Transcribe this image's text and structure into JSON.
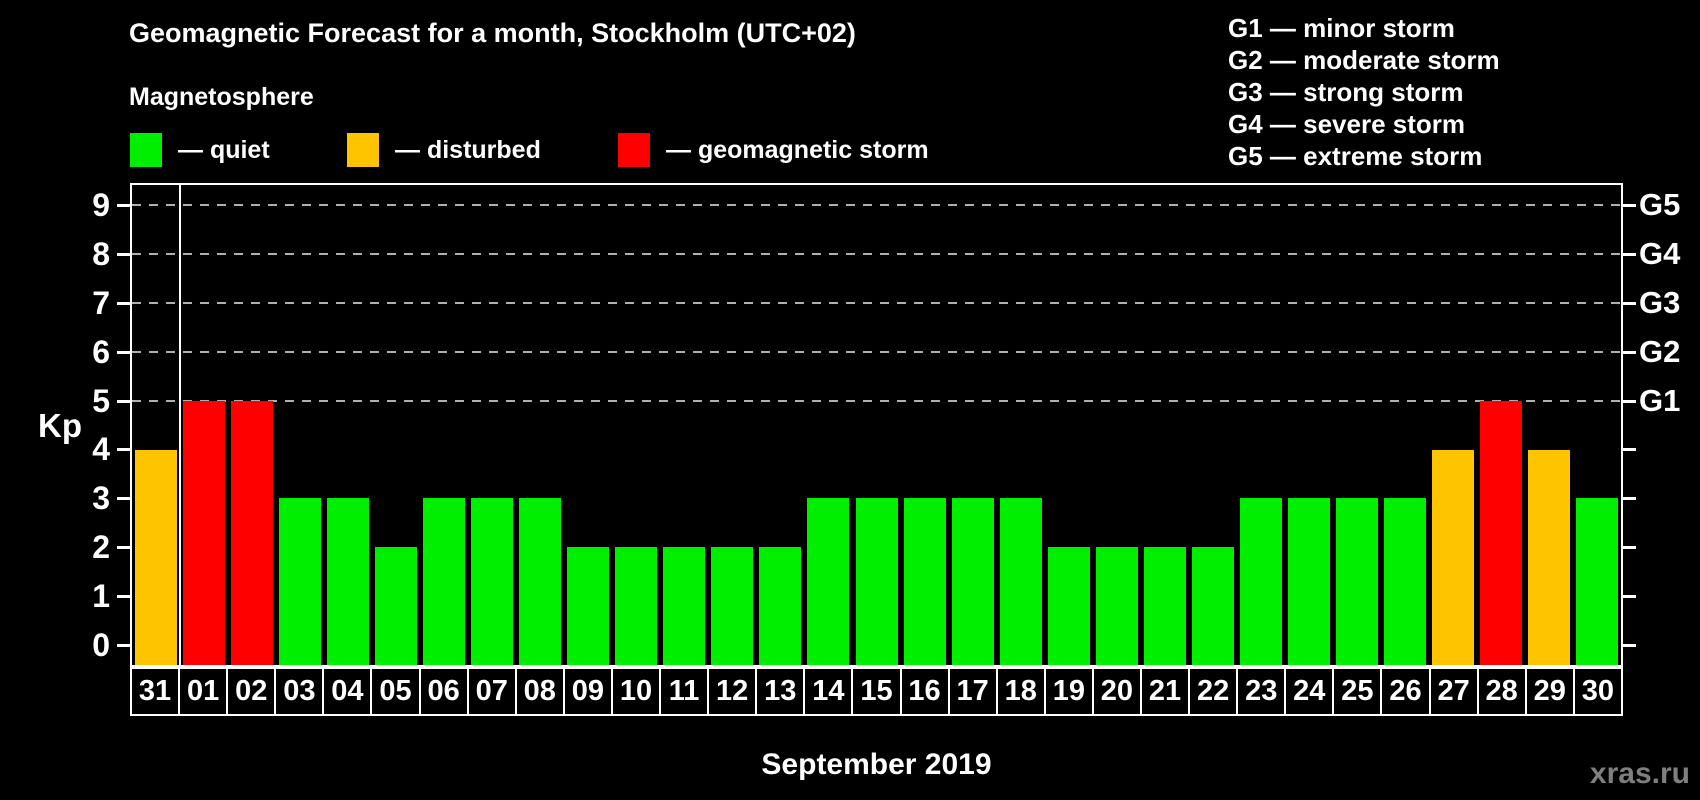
{
  "page": {
    "background": "#000000"
  },
  "header": {
    "title": "Geomagnetic Forecast for a month, Stockholm (UTC+02)",
    "subtitle": "Magnetosphere"
  },
  "legend": {
    "items": [
      {
        "label": "— quiet",
        "status": "quiet",
        "color": "#00ee00"
      },
      {
        "label": "— disturbed",
        "status": "disturbed",
        "color": "#ffc400"
      },
      {
        "label": "— geomagnetic storm",
        "status": "geomagnetic storm",
        "color": "#ff0000"
      }
    ]
  },
  "g_scale_legend": {
    "lines": [
      "G1 — minor storm",
      "G2 — moderate storm",
      "G3 — strong storm",
      "G4 — severe storm",
      "G5 — extreme storm"
    ]
  },
  "axes": {
    "y_label": "Kp",
    "y_ticks": [
      0,
      1,
      2,
      3,
      4,
      5,
      6,
      7,
      8,
      9
    ],
    "right_labels": [
      {
        "kp": 9,
        "label": "G5"
      },
      {
        "kp": 8,
        "label": "G4"
      },
      {
        "kp": 7,
        "label": "G3"
      },
      {
        "kp": 6,
        "label": "G2"
      },
      {
        "kp": 5,
        "label": "G1"
      }
    ]
  },
  "footer": {
    "month_label": "September 2019",
    "watermark": "xras.ru"
  },
  "chart_data": {
    "type": "bar",
    "title": "Geomagnetic Forecast for a month, Stockholm (UTC+02)",
    "categories": [
      "31",
      "01",
      "02",
      "03",
      "04",
      "05",
      "06",
      "07",
      "08",
      "09",
      "10",
      "11",
      "12",
      "13",
      "14",
      "15",
      "16",
      "17",
      "18",
      "19",
      "20",
      "21",
      "22",
      "23",
      "24",
      "25",
      "26",
      "27",
      "28",
      "29",
      "30"
    ],
    "values": [
      4,
      5,
      5,
      3,
      3,
      2,
      3,
      3,
      3,
      2,
      2,
      2,
      2,
      2,
      3,
      3,
      3,
      3,
      3,
      2,
      2,
      2,
      2,
      3,
      3,
      3,
      3,
      4,
      5,
      4,
      3
    ],
    "xlabel": "September 2019",
    "ylabel": "Kp",
    "ylim": [
      -0.4,
      9.4
    ],
    "gridlines_at_kp": [
      5,
      6,
      7,
      8,
      9
    ],
    "grid_style": "dashed",
    "legend_position": "top-left",
    "separator_after_category_index": 0,
    "color_rules": [
      {
        "min_kp": 5,
        "color": "#ff0000",
        "status": "geomagnetic storm"
      },
      {
        "min_kp": 4,
        "color": "#ffc400",
        "status": "disturbed"
      },
      {
        "min_kp": 0,
        "color": "#00ee00",
        "status": "quiet"
      }
    ],
    "colors": {
      "grid": "#b0b0b0",
      "frame": "#ffffff",
      "text": "#ffffff",
      "watermark": "#7f7f7f",
      "background": "#000000"
    }
  }
}
